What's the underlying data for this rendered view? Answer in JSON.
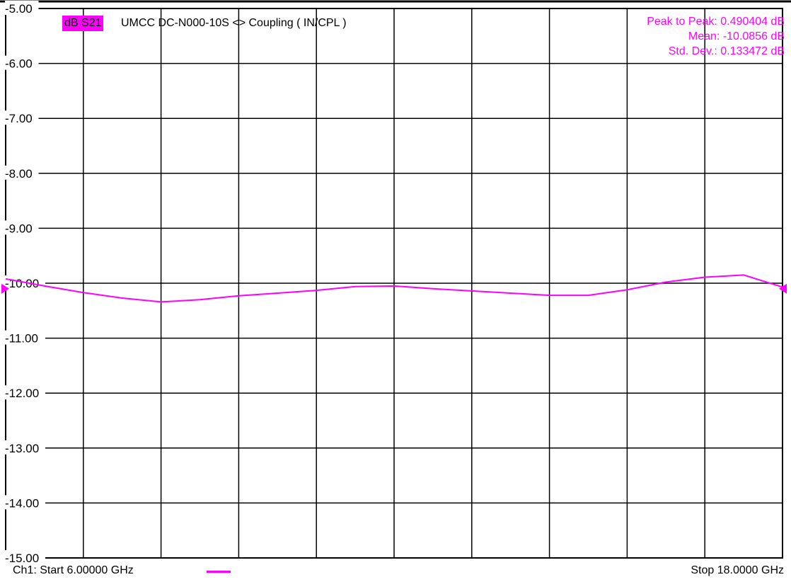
{
  "colors": {
    "trace": "#ff00ff",
    "grid": "#000000",
    "background": "#ffffff"
  },
  "trace": {
    "tag": "dB S21",
    "title": "UMCC  DC-N000-10S <> Coupling ( IN/CPL )"
  },
  "stats": {
    "peak_to_peak": "Peak to Peak: 0.490404 dB",
    "mean": "Mean: -10.0856 dB",
    "std_dev": "Std. Dev.: 0.133472 dB"
  },
  "footer": {
    "start": "Ch1: Start  6.00000 GHz",
    "stop": "Stop  18.0000 GHz"
  },
  "chart_data": {
    "type": "line",
    "title": "",
    "xlabel": "",
    "ylabel": "",
    "xlim": [
      6.0,
      18.0
    ],
    "ylim": [
      -15.0,
      -5.0
    ],
    "x_divisions": 10,
    "grid": true,
    "yticks": [
      "-5.00",
      "-6.00",
      "-7.00",
      "-8.00",
      "-9.00",
      "-10.00",
      "-11.00",
      "-12.00",
      "-13.00",
      "-14.00",
      "-15.00"
    ],
    "series": [
      {
        "x": [
          6.0,
          6.6,
          7.2,
          7.8,
          8.4,
          9.0,
          9.6,
          10.2,
          10.8,
          11.4,
          12.0,
          12.6,
          13.2,
          13.8,
          14.4,
          15.0,
          15.6,
          16.2,
          16.8,
          17.4,
          18.0
        ],
        "y": [
          -9.92,
          -10.05,
          -10.17,
          -10.27,
          -10.34,
          -10.3,
          -10.23,
          -10.18,
          -10.13,
          -10.06,
          -10.05,
          -10.1,
          -10.14,
          -10.18,
          -10.22,
          -10.22,
          -10.12,
          -9.98,
          -9.89,
          -9.85,
          -10.07
        ]
      }
    ]
  }
}
